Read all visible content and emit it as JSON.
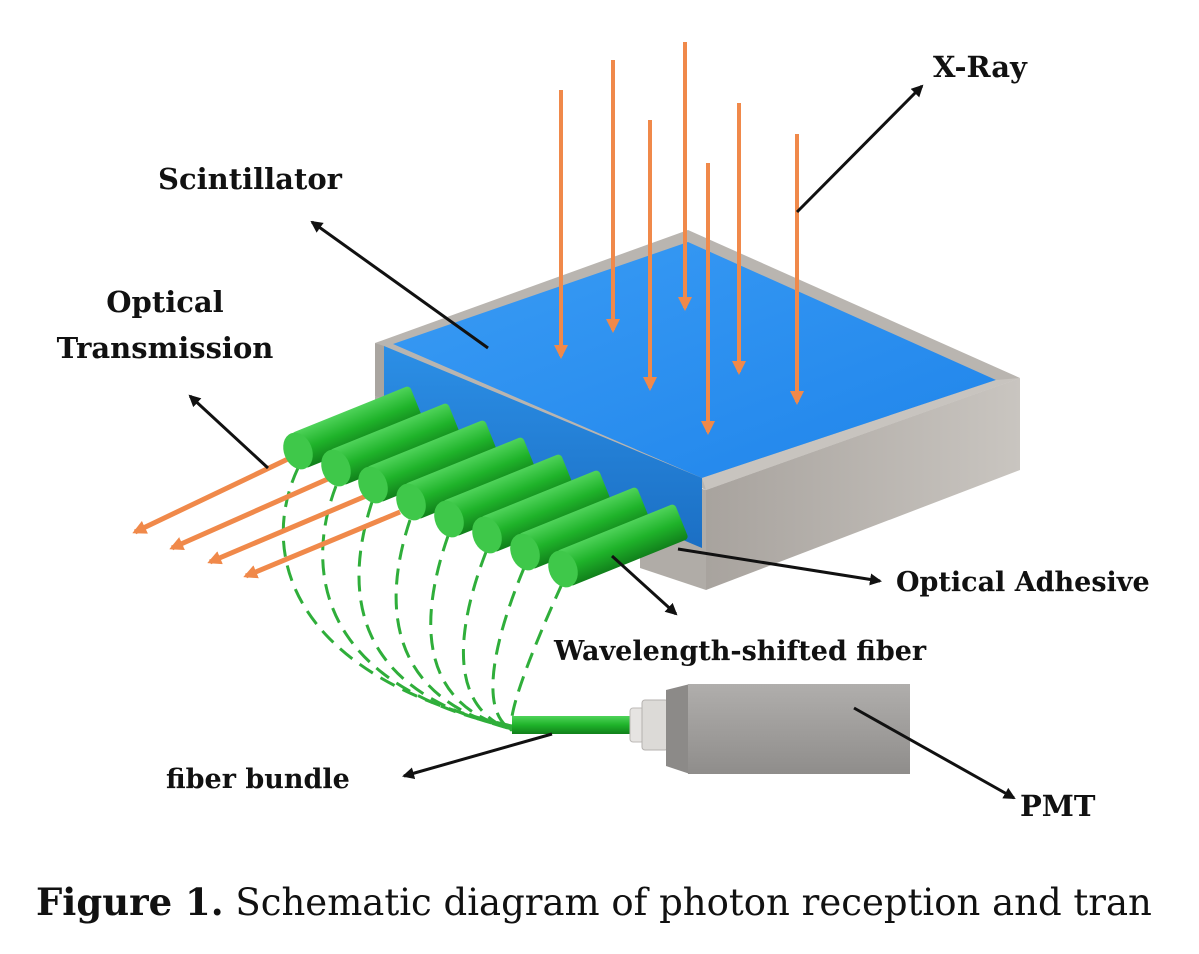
{
  "labels": {
    "xray": "X-Ray",
    "scintillator": "Scintillator",
    "optical_transmission_1": "Optical",
    "optical_transmission_2": "Transmission",
    "optical_adhesive": "Optical Adhesive",
    "wavelength_shifted_fiber": "Wavelength-shifted fiber",
    "fiber_bundle": "fiber bundle",
    "pmt": "PMT"
  },
  "caption": {
    "figure_number": "Figure 1.",
    "text": " Schematic diagram of photon reception and tran"
  },
  "colors": {
    "scintillator_top": "#2b8ef0",
    "scintillator_frame": "#b9b5b0",
    "fiber_green": "#22b32a",
    "xray_arrow": "#f0894a",
    "dashed_fiber": "#2fae3a",
    "pmt_body": "#9c9a98",
    "leader_line": "#111111"
  }
}
